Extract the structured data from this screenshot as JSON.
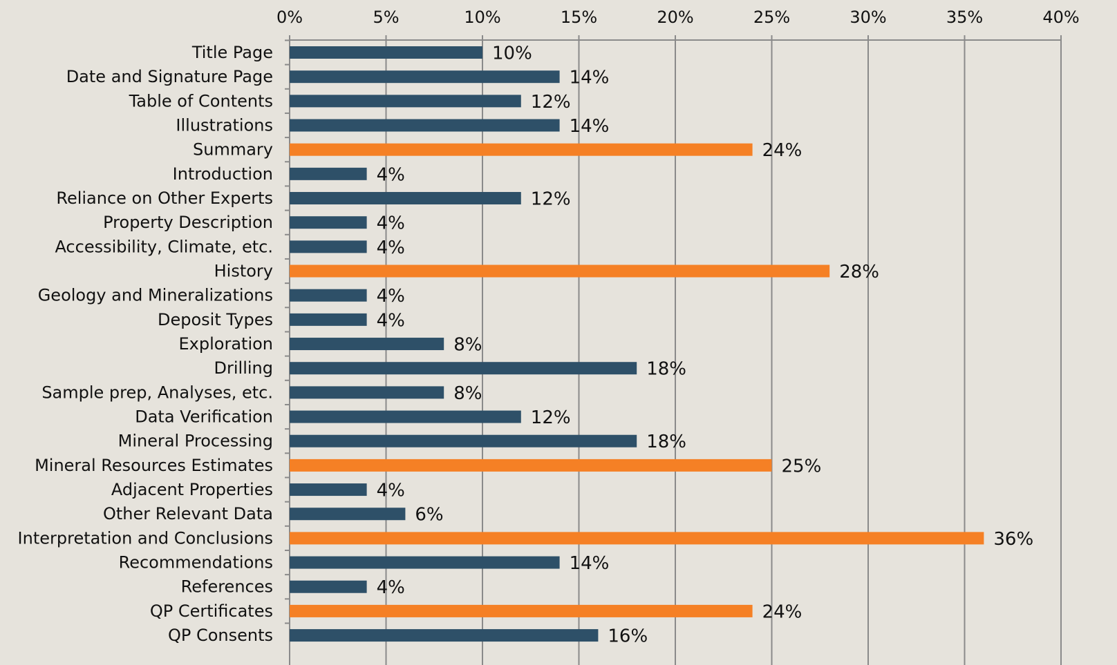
{
  "chart_data": {
    "type": "bar",
    "orientation": "horizontal",
    "categories": [
      "Title Page",
      "Date and Signature Page",
      "Table of Contents",
      "Illustrations",
      "Summary",
      "Introduction",
      "Reliance on Other Experts",
      "Property Description",
      "Accessibility, Climate, etc.",
      "History",
      "Geology and Mineralizations",
      "Deposit Types",
      "Exploration",
      "Drilling",
      "Sample prep, Analyses, etc.",
      "Data Verification",
      "Mineral Processing",
      "Mineral Resources Estimates",
      "Adjacent Properties",
      "Other Relevant Data",
      "Interpretation and Conclusions",
      "Recommendations",
      "References",
      "QP Certificates",
      "QP Consents"
    ],
    "values": [
      10,
      14,
      12,
      14,
      24,
      4,
      12,
      4,
      4,
      28,
      4,
      4,
      8,
      18,
      8,
      12,
      18,
      25,
      4,
      6,
      36,
      14,
      4,
      24,
      16
    ],
    "value_labels": [
      "10%",
      "14%",
      "12%",
      "14%",
      "24%",
      "4%",
      "12%",
      "4%",
      "4%",
      "28%",
      "4%",
      "4%",
      "8%",
      "18%",
      "8%",
      "12%",
      "18%",
      "25%",
      "4%",
      "6%",
      "36%",
      "14%",
      "4%",
      "24%",
      "16%"
    ],
    "colors": [
      "#2e5068",
      "#2e5068",
      "#2e5068",
      "#2e5068",
      "#f58025",
      "#2e5068",
      "#2e5068",
      "#2e5068",
      "#2e5068",
      "#f58025",
      "#2e5068",
      "#2e5068",
      "#2e5068",
      "#2e5068",
      "#2e5068",
      "#2e5068",
      "#2e5068",
      "#f58025",
      "#2e5068",
      "#2e5068",
      "#f58025",
      "#2e5068",
      "#2e5068",
      "#f58025",
      "#2e5068"
    ],
    "xlim": [
      0,
      40
    ],
    "xticks": [
      {
        "value": 0,
        "label": "0%"
      },
      {
        "value": 5,
        "label": "5%"
      },
      {
        "value": 10,
        "label": "10%"
      },
      {
        "value": 15,
        "label": "15%"
      },
      {
        "value": 20,
        "label": "20%"
      },
      {
        "value": 25,
        "label": "25%"
      },
      {
        "value": 30,
        "label": "30%"
      },
      {
        "value": 35,
        "label": "35%"
      },
      {
        "value": 40,
        "label": "40%"
      }
    ],
    "grid": true,
    "xaxis_position": "top"
  }
}
